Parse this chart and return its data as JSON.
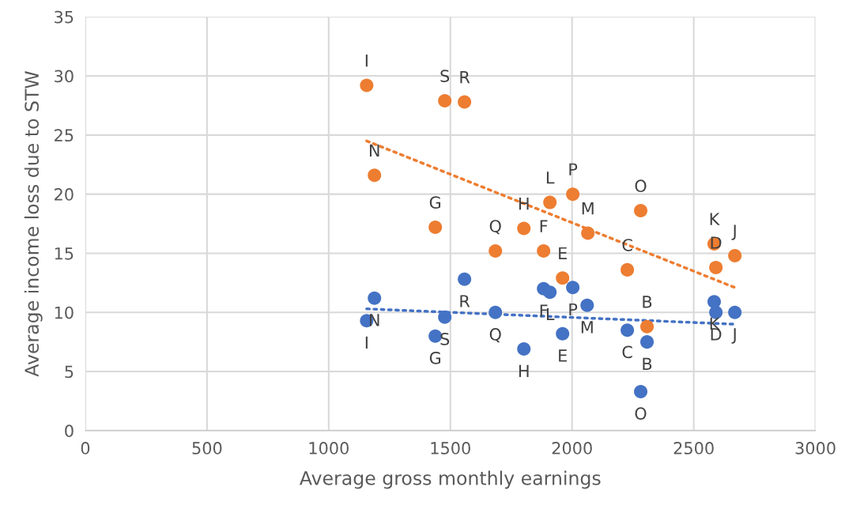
{
  "chart_data": {
    "type": "scatter",
    "xlabel": "Average gross monthly earnings",
    "ylabel": "Average income loss due to STW",
    "xlim": [
      0,
      3000
    ],
    "xticks": [
      0,
      500,
      1000,
      1500,
      2000,
      2500,
      3000
    ],
    "ylim": [
      0,
      35
    ],
    "yticks": [
      0,
      5,
      10,
      15,
      20,
      25,
      30,
      35
    ],
    "grid": true,
    "legend": false,
    "marker": "circle",
    "series": [
      {
        "color": "#ed7d31",
        "x": [
          1156,
          1477,
          1558,
          1188,
          1438,
          1685,
          1802,
          1883,
          1961,
          1909,
          2003,
          2065,
          2282,
          2227,
          2308,
          2584,
          2591,
          2669
        ],
        "values": [
          29.2,
          27.9,
          27.8,
          21.6,
          17.2,
          15.2,
          17.1,
          15.2,
          12.9,
          19.3,
          20.0,
          16.7,
          18.6,
          13.6,
          8.8,
          15.8,
          13.8,
          14.8
        ],
        "value_labels": [
          "I",
          "S",
          "R",
          "N",
          "G",
          "Q",
          "H",
          "F",
          "E",
          "L",
          "P",
          "M",
          "O",
          "C",
          "B",
          "K",
          "D",
          "J"
        ]
      },
      {
        "color": "#4472c4",
        "x": [
          1188,
          1156,
          1477,
          1438,
          1558,
          1685,
          1802,
          1883,
          1909,
          1961,
          2003,
          2062,
          2227,
          2308,
          2282,
          2584,
          2591,
          2669
        ],
        "values": [
          11.2,
          9.3,
          9.6,
          8.0,
          12.8,
          10.0,
          6.9,
          12.0,
          11.7,
          8.2,
          12.1,
          10.6,
          8.5,
          7.5,
          3.3,
          10.9,
          10.0,
          10.0
        ],
        "value_labels": [
          "N",
          "I",
          "S",
          "G",
          "R",
          "Q",
          "H",
          "F",
          "L",
          "E",
          "P",
          "M",
          "C",
          "B",
          "O",
          "K",
          "D",
          "J"
        ]
      },
      {
        "type": "line",
        "color": "#ed7d31",
        "x": [
          1156,
          2669
        ],
        "values": [
          24.5,
          12.1
        ],
        "line_style": "dotted",
        "marker": "none"
      },
      {
        "type": "line",
        "color": "#4472c4",
        "x": [
          1156,
          2669
        ],
        "values": [
          10.3,
          9.0
        ],
        "line_style": "dotted",
        "marker": "none"
      }
    ]
  }
}
